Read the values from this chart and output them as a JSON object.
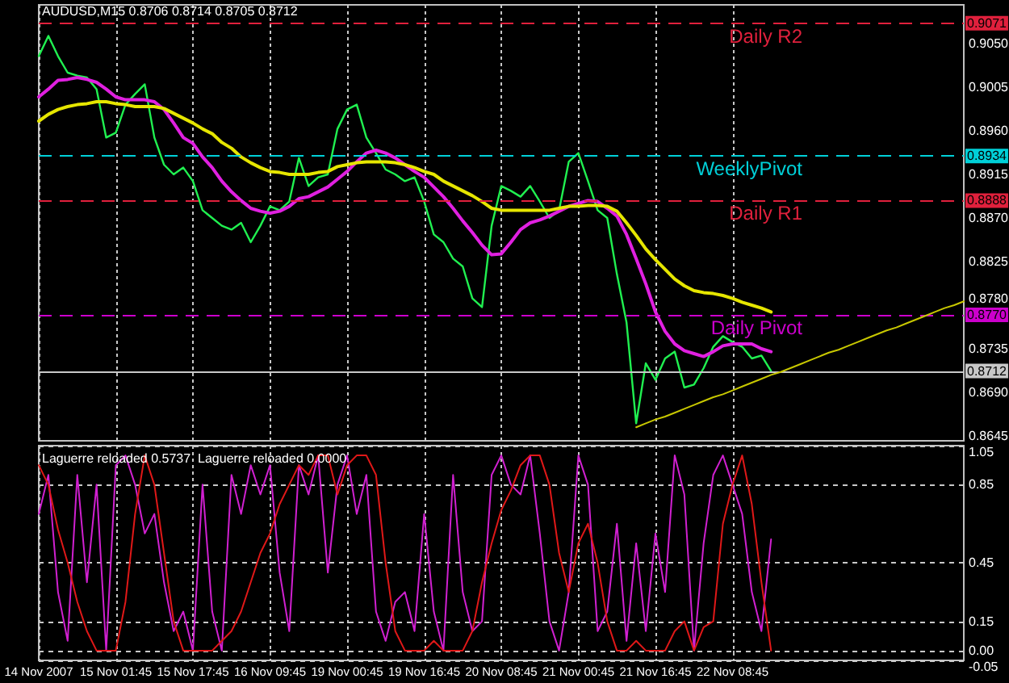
{
  "chart_data": [
    {
      "type": "line",
      "title": "AUDUSD,M15 0.8706 0.8714 0.8705 0.8712",
      "categories": [
        null,
        null,
        null,
        null,
        null,
        null,
        null,
        null,
        null,
        null,
        null,
        null,
        null,
        null,
        null,
        null,
        null,
        null,
        null,
        null,
        null,
        null,
        null,
        null,
        null,
        null,
        null,
        null,
        null,
        null,
        null,
        null,
        null,
        null,
        null,
        null,
        null,
        null,
        null,
        null,
        null,
        null,
        null,
        null,
        null,
        null,
        null,
        null,
        null,
        null,
        null,
        null,
        null,
        null,
        null,
        null,
        null,
        null,
        null,
        null,
        null,
        null,
        null,
        null,
        null,
        null,
        null,
        null,
        null,
        null,
        null,
        null,
        null,
        null,
        null,
        null,
        null,
        null,
        null,
        null,
        null,
        null,
        null,
        null,
        null,
        null,
        null,
        null,
        null,
        null,
        null,
        null,
        null,
        null,
        null,
        null,
        null
      ],
      "series": [
        {
          "color": "#20f050",
          "values": [
            0.9037,
            0.9058,
            0.9037,
            0.902,
            0.9017,
            0.9015,
            0.9003,
            0.8953,
            0.8958,
            0.8987,
            0.8998,
            0.9008,
            0.8953,
            0.8925,
            0.8915,
            0.8922,
            0.8908,
            0.8878,
            0.887,
            0.8862,
            0.8858,
            0.8865,
            0.8845,
            0.8862,
            0.8882,
            0.8878,
            0.8887,
            0.8932,
            0.8903,
            0.8912,
            0.8915,
            0.8962,
            0.8982,
            0.8987,
            0.8953,
            0.8937,
            0.892,
            0.8915,
            0.8908,
            0.8912,
            0.8887,
            0.8853,
            0.8845,
            0.8828,
            0.882,
            0.8787,
            0.8778,
            0.8862,
            0.8903,
            0.8898,
            0.8892,
            0.8903,
            0.8887,
            0.887,
            0.8878,
            0.8928,
            0.8937,
            0.8908,
            0.8878,
            0.887,
            0.8812,
            0.8762,
            0.8658,
            0.872,
            0.8703,
            0.8725,
            0.8732,
            0.8695,
            0.8698,
            0.8715,
            0.8737,
            0.8748,
            0.8742,
            0.8737,
            0.8725,
            0.8728,
            0.8712,
            null,
            null,
            null,
            null,
            null,
            null,
            null,
            null,
            null,
            null,
            null,
            null,
            null,
            null,
            null,
            null,
            null,
            null,
            null,
            null
          ]
        },
        {
          "color": "#e020e0",
          "values": [
            0.8995,
            0.9003,
            0.9012,
            0.9013,
            0.9015,
            0.9013,
            0.901,
            0.9003,
            0.8995,
            0.8992,
            0.8992,
            0.8992,
            0.899,
            0.8982,
            0.8968,
            0.8953,
            0.8947,
            0.8933,
            0.8922,
            0.8908,
            0.8897,
            0.8888,
            0.888,
            0.8877,
            0.8875,
            0.8877,
            0.8882,
            0.889,
            0.8892,
            0.8897,
            0.8902,
            0.891,
            0.8918,
            0.8928,
            0.8937,
            0.894,
            0.8937,
            0.8932,
            0.8925,
            0.8918,
            0.8912,
            0.8902,
            0.8892,
            0.888,
            0.8867,
            0.8855,
            0.8842,
            0.8832,
            0.8833,
            0.8845,
            0.8858,
            0.8865,
            0.8868,
            0.8872,
            0.8877,
            0.8882,
            0.8885,
            0.8888,
            0.8887,
            0.888,
            0.8872,
            0.8853,
            0.8828,
            0.8802,
            0.8773,
            0.8753,
            0.874,
            0.8733,
            0.873,
            0.8727,
            0.8732,
            0.8738,
            0.874,
            0.874,
            0.874,
            0.8735,
            0.8732,
            null,
            null,
            null,
            null,
            null,
            null,
            null,
            null,
            null,
            null,
            null,
            null,
            null,
            null,
            null,
            null,
            null,
            null,
            null,
            null
          ]
        },
        {
          "color": "#e6e600",
          "values": [
            0.897,
            0.8977,
            0.8982,
            0.8985,
            0.8987,
            0.8988,
            0.899,
            0.899,
            0.8988,
            0.8987,
            0.8985,
            0.8985,
            0.8985,
            0.8983,
            0.8978,
            0.8973,
            0.8968,
            0.8962,
            0.8957,
            0.8948,
            0.8942,
            0.8933,
            0.8927,
            0.8922,
            0.8918,
            0.8917,
            0.8915,
            0.8915,
            0.8915,
            0.8917,
            0.8918,
            0.8923,
            0.8925,
            0.8927,
            0.8928,
            0.8928,
            0.8928,
            0.8927,
            0.8925,
            0.8922,
            0.8918,
            0.8915,
            0.8908,
            0.8903,
            0.8898,
            0.8893,
            0.8887,
            0.888,
            0.8878,
            0.8878,
            0.8878,
            0.8878,
            0.8878,
            0.8878,
            0.888,
            0.8882,
            0.8882,
            0.8883,
            0.8883,
            0.8882,
            0.8877,
            0.8865,
            0.8852,
            0.8838,
            0.8827,
            0.8817,
            0.8807,
            0.88,
            0.8795,
            0.8793,
            0.8792,
            0.879,
            0.8787,
            0.8783,
            0.878,
            0.8777,
            0.8773,
            null,
            null,
            null,
            null,
            null,
            null,
            null,
            null,
            null,
            null,
            null,
            null,
            null,
            null,
            null,
            null,
            null,
            null,
            null,
            null
          ]
        },
        {
          "color": "#c8c800",
          "values": [
            null,
            null,
            null,
            null,
            null,
            null,
            null,
            null,
            null,
            null,
            null,
            null,
            null,
            null,
            null,
            null,
            null,
            null,
            null,
            null,
            null,
            null,
            null,
            null,
            null,
            null,
            null,
            null,
            null,
            null,
            null,
            null,
            null,
            null,
            null,
            null,
            null,
            null,
            null,
            null,
            null,
            null,
            null,
            null,
            null,
            null,
            null,
            null,
            null,
            null,
            null,
            null,
            null,
            null,
            null,
            null,
            null,
            null,
            null,
            null,
            null,
            null,
            0.8654,
            0.8658,
            0.8662,
            0.8665,
            0.8669,
            0.8673,
            0.8677,
            0.8681,
            0.8685,
            0.8688,
            0.8692,
            0.8696,
            0.87,
            0.8704,
            0.8708,
            0.8711,
            0.8715,
            0.8719,
            0.8723,
            0.8727,
            0.8731,
            0.8734,
            0.8738,
            0.8742,
            0.8746,
            0.875,
            0.8754,
            0.8757,
            0.8761,
            0.8765,
            0.8769,
            0.8773,
            0.8777,
            0.878,
            0.8784
          ]
        }
      ],
      "ylim": [
        0.864,
        0.909
      ],
      "yticks": [
        {
          "value": 0.905,
          "label": "0.9050"
        },
        0.9005,
        {
          "value": 0.896,
          "label": "0.8960"
        },
        0.8915,
        {
          "value": 0.887,
          "label": "0.8870"
        },
        0.8825,
        {
          "value": 0.878,
          "label": "0.8780"
        },
        0.8735,
        {
          "value": 0.869,
          "label": "0.8690"
        },
        0.8645
      ],
      "grid": "x",
      "tick_labels": "y",
      "ref_lines": [
        {
          "axis": "y",
          "value": 0.9071,
          "label": "Daily R2",
          "color": "#e0203c",
          "line_style": "dashed"
        },
        {
          "axis": "y",
          "value": 0.8934,
          "label": "WeeklyPivot",
          "color": "#00d0d8",
          "line_style": "dashed"
        },
        {
          "axis": "y",
          "value": 0.8888,
          "label": "Daily R1",
          "color": "#e0203c",
          "line_style": "dashed"
        },
        {
          "axis": "y",
          "value": 0.877,
          "label": "Daily Pivot",
          "color": "#cc00cc",
          "line_style": "dashed"
        },
        {
          "axis": "y",
          "value": 0.8712,
          "color": "#c8c8c8",
          "line_style": "solid"
        }
      ],
      "annotations": [
        {
          "text": "0.9071",
          "y": 0.9071
        },
        {
          "text": "0.8934",
          "y": 0.8934
        },
        {
          "text": "0.8888",
          "y": 0.8888
        },
        {
          "text": "0.8770",
          "y": 0.877
        },
        {
          "text": "0.8712",
          "y": 0.8712
        }
      ]
    },
    {
      "type": "line",
      "title": "Laguerre reloaded 0.5737  Laguerre reloaded 0.0000",
      "categories": [
        "14 Nov 2007",
        null,
        null,
        null,
        null,
        null,
        null,
        null,
        "15 Nov 01:45",
        null,
        null,
        null,
        null,
        null,
        null,
        null,
        "15 Nov 17:45",
        null,
        null,
        null,
        null,
        null,
        null,
        null,
        "16 Nov 09:45",
        null,
        null,
        null,
        null,
        null,
        null,
        null,
        "19 Nov 00:45",
        null,
        null,
        null,
        null,
        null,
        null,
        null,
        "19 Nov 16:45",
        null,
        null,
        null,
        null,
        null,
        null,
        null,
        "20 Nov 08:45",
        null,
        null,
        null,
        null,
        null,
        null,
        null,
        "21 Nov 00:45",
        null,
        null,
        null,
        null,
        null,
        null,
        null,
        "21 Nov 16:45",
        null,
        null,
        null,
        null,
        null,
        null,
        null,
        "22 Nov 08:45",
        null,
        null,
        null,
        null,
        null,
        null,
        null,
        null,
        null,
        null,
        null,
        null,
        null,
        null,
        null,
        null,
        null,
        null,
        null,
        null,
        null,
        null,
        null,
        null
      ],
      "series": [
        {
          "color": "#d020d0",
          "values": [
            0.7,
            0.9,
            0.3,
            0.05,
            0.9,
            0.35,
            0.85,
            0,
            0.95,
            1,
            0.85,
            0.6,
            0.7,
            0.35,
            0.1,
            0.2,
            0,
            0.85,
            0.2,
            0,
            0.9,
            0.7,
            0.95,
            0.8,
            0.95,
            0.4,
            0.1,
            0.95,
            0.8,
            1,
            0.4,
            0.85,
            1,
            0.7,
            0.9,
            0.2,
            0.05,
            0.25,
            0.3,
            0.1,
            0.7,
            0.2,
            0,
            0.9,
            0.3,
            0.1,
            0.15,
            0.9,
            1,
            0.85,
            0.8,
            1,
            0.6,
            0.15,
            0,
            0.3,
            1,
            0.85,
            0.1,
            0.2,
            0.65,
            0.05,
            0.55,
            0.1,
            0.6,
            0.3,
            1,
            0.8,
            0,
            0.55,
            0.9,
            1,
            0.85,
            0.7,
            0.3,
            0.1,
            0.57,
            null,
            null,
            null,
            null,
            null,
            null,
            null,
            null,
            null,
            null,
            null,
            null,
            null,
            null,
            null,
            null,
            null,
            null,
            null,
            null
          ]
        },
        {
          "color": "#e01818",
          "values": [
            0.95,
            0.85,
            0.62,
            0.45,
            0.25,
            0.1,
            0,
            0,
            0,
            0.25,
            0.7,
            1,
            0.85,
            0.5,
            0.15,
            0,
            0,
            0,
            0,
            0.05,
            0.1,
            0.2,
            0.35,
            0.5,
            0.6,
            0.75,
            0.85,
            0.95,
            0.9,
            1,
            1,
            0.8,
            0.95,
            1,
            1,
            0.9,
            0.45,
            0.1,
            0,
            0,
            0,
            0.05,
            0,
            0,
            0,
            0.1,
            0.35,
            0.55,
            0.72,
            0.82,
            0.95,
            1,
            1,
            0.85,
            0.5,
            0.3,
            0.55,
            0.65,
            0.45,
            0.15,
            0,
            0,
            0.05,
            0,
            0,
            0,
            0.1,
            0.15,
            0,
            0.12,
            0.15,
            0.65,
            0.85,
            1,
            0.75,
            0.35,
            0,
            null,
            null,
            null,
            null,
            null,
            null,
            null,
            null,
            null,
            null,
            null,
            null,
            null,
            null,
            null,
            null,
            null,
            null,
            null,
            null
          ]
        }
      ],
      "ylim": [
        -0.05,
        1.05
      ],
      "yticks": [
        1.05,
        0.85,
        0.45,
        0.15,
        {
          "value": 0,
          "label": "0.00"
        },
        -0.05
      ],
      "grid": true
    }
  ]
}
